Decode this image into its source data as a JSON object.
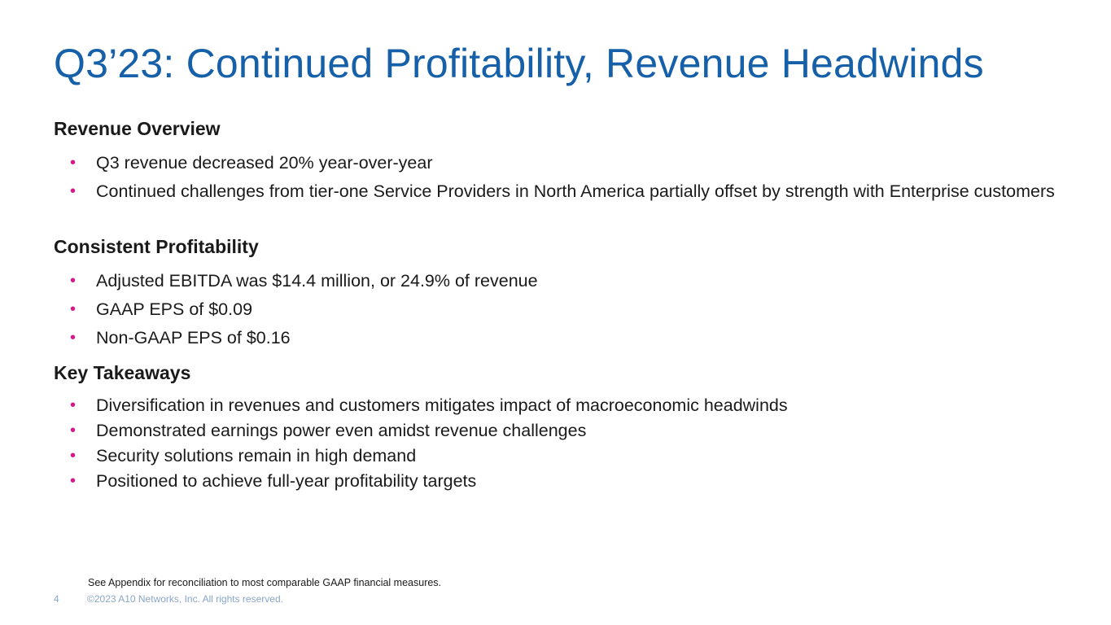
{
  "slide": {
    "title": "Q3’23: Continued Profitability, Revenue Headwinds",
    "sections": {
      "revenue": {
        "heading": "Revenue Overview",
        "bullets": [
          "Q3 revenue decreased 20% year-over-year",
          "Continued challenges from tier-one Service Providers in North America partially offset by strength with Enterprise customers"
        ]
      },
      "profitability": {
        "heading": "Consistent Profitability",
        "bullets": [
          "Adjusted EBITDA was $14.4 million, or 24.9% of revenue",
          "GAAP EPS of $0.09",
          "Non-GAAP EPS of $0.16"
        ]
      },
      "takeaways": {
        "heading": "Key Takeaways",
        "bullets": [
          "Diversification in revenues and customers mitigates impact of macroeconomic headwinds",
          "Demonstrated earnings power even amidst revenue challenges",
          "Security solutions remain in high demand",
          "Positioned to achieve full-year profitability targets"
        ]
      }
    },
    "footnote": "See Appendix for reconciliation to most comparable GAAP financial measures.",
    "page_number": "4",
    "copyright": "©2023 A10 Networks, Inc. All rights reserved.",
    "bullet_glyph": "•"
  },
  "colors": {
    "title": "#1560a8",
    "bullet": "#d6198a",
    "footer": "#8aa6c8"
  }
}
